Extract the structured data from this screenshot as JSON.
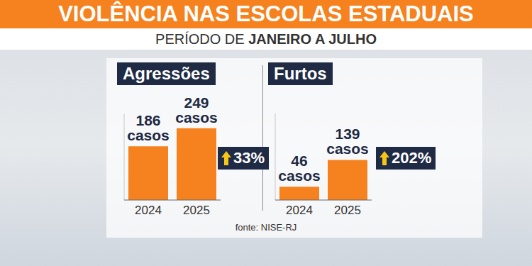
{
  "title": "VIOLÊNCIA NAS ESCOLAS ESTADUAIS",
  "subtitle": [
    "PERÍODO DE",
    "JANEIRO A JULHO"
  ],
  "source": "fonte: NISE-RJ",
  "chart_data": [
    {
      "type": "bar",
      "title": "Agressões",
      "categories": [
        "2024",
        "2025"
      ],
      "values": [
        186,
        249
      ],
      "value_labels": [
        "186 casos",
        "249 casos"
      ],
      "annotations": [
        "33%"
      ],
      "color": "#f5821f",
      "ylim": [
        0,
        300
      ],
      "data_labels": true,
      "tick_labels": "x"
    },
    {
      "type": "bar",
      "title": "Furtos",
      "categories": [
        "2024",
        "2025"
      ],
      "values": [
        46,
        139
      ],
      "value_labels": [
        "46 casos",
        "139 casos"
      ],
      "annotations": [
        "202%"
      ],
      "color": "#f5821f",
      "ylim": [
        0,
        300
      ],
      "data_labels": true,
      "tick_labels": "x"
    }
  ]
}
